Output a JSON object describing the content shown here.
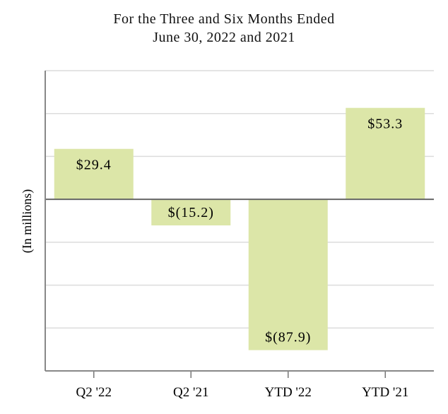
{
  "chart_data": {
    "type": "bar",
    "title_lines": [
      "For the Three and Six Months Ended",
      "June 30, 2022 and 2021"
    ],
    "ylabel": "(In millions)",
    "xlabel": "",
    "categories": [
      "Q2 '22",
      "Q2 '21",
      "YTD '22",
      "YTD '21"
    ],
    "values": [
      29.4,
      -15.2,
      -87.9,
      53.3
    ],
    "data_labels": [
      "$29.4",
      "$(15.2)",
      "$(87.9)",
      "$53.3"
    ],
    "ylim": [
      -100,
      75
    ],
    "grid": true,
    "legend": "none",
    "bar_color": "#dce6a8"
  }
}
